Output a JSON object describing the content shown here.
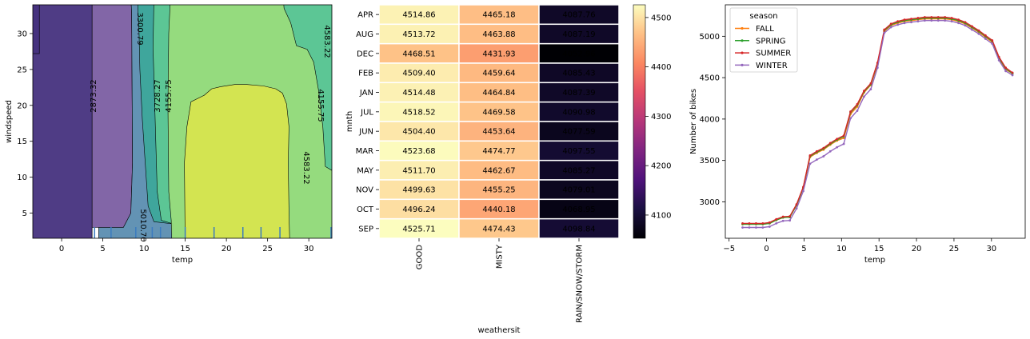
{
  "chart_data": [
    {
      "type": "contour",
      "xlabel": "temp",
      "ylabel": "windspeed",
      "xlim": [
        -3.5,
        32.8
      ],
      "ylim": [
        1.5,
        34
      ],
      "xticks": [
        0,
        5,
        10,
        15,
        20,
        25,
        30
      ],
      "yticks": [
        5,
        10,
        15,
        20,
        25,
        30
      ],
      "levels": [
        2873.32,
        3300.79,
        3728.27,
        4155.75,
        4583.22,
        5010.7
      ],
      "level_labels": [
        "2873.32",
        "3300.79",
        "3728.27",
        "4155.75",
        "4155.75",
        "4583.22",
        "4583.22",
        "5010.70"
      ],
      "rug_x": [
        4,
        6,
        9,
        11,
        12,
        15,
        18.5,
        22,
        24.2,
        26.5,
        32.7
      ],
      "colors": [
        "#46327e",
        "#7b5ea2",
        "#5b8db0",
        "#3da69b",
        "#5ec795",
        "#98dc7c",
        "#d6e54f"
      ]
    },
    {
      "type": "heatmap",
      "xlabel": "weathersit",
      "ylabel": "mnth",
      "columns": [
        "GOOD",
        "MISTY",
        "RAIN/SNOW/STORM"
      ],
      "rows": [
        "APR",
        "AUG",
        "DEC",
        "FEB",
        "JAN",
        "JUL",
        "JUN",
        "MAR",
        "MAY",
        "NOV",
        "OCT",
        "SEP"
      ],
      "values": [
        [
          4514.86,
          4465.18,
          4087.76
        ],
        [
          4513.72,
          4463.88,
          4087.19
        ],
        [
          4468.51,
          4431.93,
          4052.96
        ],
        [
          4509.4,
          4459.64,
          4085.43
        ],
        [
          4514.48,
          4464.84,
          4087.39
        ],
        [
          4518.52,
          4469.58,
          4090.98
        ],
        [
          4504.4,
          4453.64,
          4077.59
        ],
        [
          4523.68,
          4474.77,
          4097.55
        ],
        [
          4511.7,
          4462.67,
          4085.27
        ],
        [
          4499.63,
          4455.25,
          4079.01
        ],
        [
          4496.24,
          4440.18,
          4068.95
        ],
        [
          4525.71,
          4474.43,
          4098.84
        ]
      ],
      "labels": [
        [
          "4514.86",
          "4465.18",
          "4087.76"
        ],
        [
          "4513.72",
          "4463.88",
          "4087.19"
        ],
        [
          "4468.51",
          "4431.93",
          "4052.96"
        ],
        [
          "4509.40",
          "4459.64",
          "4085.43"
        ],
        [
          "4514.48",
          "4464.84",
          "4087.39"
        ],
        [
          "4518.52",
          "4469.58",
          "4090.98"
        ],
        [
          "4504.40",
          "4453.64",
          "4077.59"
        ],
        [
          "4523.68",
          "4474.77",
          "4097.55"
        ],
        [
          "4511.70",
          "4462.67",
          "4085.27"
        ],
        [
          "4499.63",
          "4455.25",
          "4079.01"
        ],
        [
          "4496.24",
          "4440.18",
          "4068.95"
        ],
        [
          "4525.71",
          "4474.43",
          "4098.84"
        ]
      ],
      "colorbar_range": [
        4052.96,
        4525.71
      ],
      "colorbar_ticks": [
        4100,
        4200,
        4300,
        4400,
        4500
      ],
      "colormap": "magma"
    },
    {
      "type": "line",
      "xlabel": "temp",
      "ylabel": "Number of bikes",
      "xlim": [
        -5.5,
        34.5
      ],
      "ylim": [
        2560,
        5380
      ],
      "xticks": [
        -5,
        0,
        5,
        10,
        15,
        20,
        25,
        30
      ],
      "yticks": [
        3000,
        3500,
        4000,
        4500,
        5000
      ],
      "legend_title": "season",
      "legend_position": "upper left",
      "x": [
        -3.2,
        -2.3,
        -1.4,
        -0.5,
        0.4,
        1.3,
        2.2,
        3.1,
        4.0,
        4.9,
        5.8,
        6.7,
        7.6,
        8.5,
        9.4,
        10.3,
        11.2,
        12.1,
        13.0,
        13.9,
        14.8,
        15.7,
        16.6,
        17.5,
        18.4,
        19.3,
        20.2,
        21.1,
        22.0,
        22.9,
        23.8,
        24.7,
        25.6,
        26.5,
        27.4,
        28.3,
        29.2,
        30.1,
        31.0,
        31.9,
        32.8
      ],
      "series": [
        {
          "name": "FALL",
          "color": "#ff7f0e",
          "values": [
            2730,
            2730,
            2730,
            2730,
            2740,
            2780,
            2810,
            2815,
            2960,
            3170,
            3540,
            3590,
            3630,
            3690,
            3740,
            3770,
            4060,
            4150,
            4320,
            4410,
            4660,
            5060,
            5130,
            5160,
            5180,
            5190,
            5200,
            5210,
            5210,
            5210,
            5210,
            5200,
            5180,
            5150,
            5100,
            5050,
            4990,
            4930,
            4730,
            4600,
            4550
          ]
        },
        {
          "name": "SPRING",
          "color": "#2ca02c",
          "values": [
            2730,
            2730,
            2730,
            2730,
            2740,
            2780,
            2810,
            2815,
            2960,
            3170,
            3550,
            3600,
            3640,
            3700,
            3750,
            3790,
            4080,
            4170,
            4330,
            4420,
            4670,
            5070,
            5140,
            5170,
            5190,
            5200,
            5210,
            5220,
            5220,
            5220,
            5220,
            5210,
            5190,
            5160,
            5110,
            5060,
            5000,
            4940,
            4740,
            4610,
            4550
          ]
        },
        {
          "name": "SUMMER",
          "color": "#d62728",
          "values": [
            2740,
            2740,
            2740,
            2740,
            2750,
            2790,
            2820,
            2825,
            2970,
            3180,
            3560,
            3610,
            3650,
            3710,
            3760,
            3800,
            4090,
            4180,
            4340,
            4430,
            4680,
            5080,
            5150,
            5180,
            5200,
            5210,
            5220,
            5230,
            5230,
            5230,
            5230,
            5220,
            5200,
            5170,
            5120,
            5070,
            5010,
            4950,
            4750,
            4620,
            4560
          ]
        },
        {
          "name": "WINTER",
          "color": "#9467bd",
          "values": [
            2690,
            2690,
            2690,
            2690,
            2700,
            2740,
            2770,
            2775,
            2920,
            3130,
            3460,
            3510,
            3550,
            3610,
            3660,
            3700,
            4010,
            4100,
            4270,
            4360,
            4620,
            5040,
            5110,
            5140,
            5160,
            5170,
            5180,
            5190,
            5190,
            5190,
            5190,
            5180,
            5160,
            5130,
            5080,
            5030,
            4970,
            4910,
            4710,
            4580,
            4530
          ]
        }
      ]
    }
  ]
}
